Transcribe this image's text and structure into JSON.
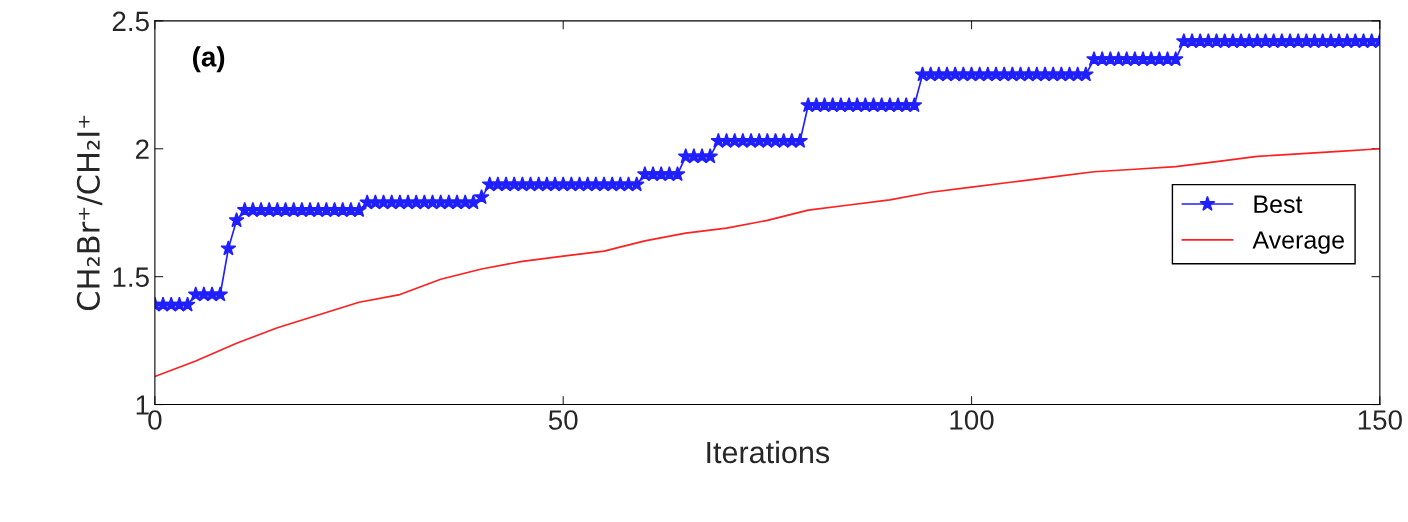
{
  "chart_data": {
    "type": "line",
    "xlabel": "Iterations",
    "ylabel": "CH₂Br⁺/CH₂I⁺",
    "annotations": [
      "(a)"
    ],
    "xlim": [
      0,
      150
    ],
    "xticks": [
      0,
      50,
      100,
      150
    ],
    "ylim": [
      1,
      2.5
    ],
    "yticks": [
      1,
      1.5,
      2,
      2.5
    ],
    "grid": false,
    "legend": "right",
    "series": [
      {
        "name": "Best",
        "color": "#1f1fff",
        "marker": "star",
        "line_style": "solid",
        "x": [
          0,
          1,
          2,
          3,
          4,
          5,
          6,
          7,
          8,
          9,
          10,
          11,
          12,
          13,
          14,
          15,
          16,
          17,
          18,
          19,
          20,
          21,
          22,
          23,
          24,
          25,
          26,
          27,
          28,
          29,
          30,
          31,
          32,
          33,
          34,
          35,
          36,
          37,
          38,
          39,
          40,
          41,
          42,
          43,
          44,
          45,
          46,
          47,
          48,
          49,
          50,
          51,
          52,
          53,
          54,
          55,
          56,
          57,
          58,
          59,
          60,
          61,
          62,
          63,
          64,
          65,
          66,
          67,
          68,
          69,
          70,
          71,
          72,
          73,
          74,
          75,
          76,
          77,
          78,
          79,
          80,
          81,
          82,
          83,
          84,
          85,
          86,
          87,
          88,
          89,
          90,
          91,
          92,
          93,
          94,
          95,
          96,
          97,
          98,
          99,
          100,
          101,
          102,
          103,
          104,
          105,
          106,
          107,
          108,
          109,
          110,
          111,
          112,
          113,
          114,
          115,
          116,
          117,
          118,
          119,
          120,
          121,
          122,
          123,
          124,
          125,
          126,
          127,
          128,
          129,
          130,
          131,
          132,
          133,
          134,
          135,
          136,
          137,
          138,
          139,
          140,
          141,
          142,
          143,
          144,
          145,
          146,
          147,
          148,
          149,
          150
        ],
        "values": [
          1.39,
          1.39,
          1.39,
          1.39,
          1.39,
          1.43,
          1.43,
          1.43,
          1.43,
          1.61,
          1.72,
          1.76,
          1.76,
          1.76,
          1.76,
          1.76,
          1.76,
          1.76,
          1.76,
          1.76,
          1.76,
          1.76,
          1.76,
          1.76,
          1.76,
          1.76,
          1.79,
          1.79,
          1.79,
          1.79,
          1.79,
          1.79,
          1.79,
          1.79,
          1.79,
          1.79,
          1.79,
          1.79,
          1.79,
          1.79,
          1.81,
          1.86,
          1.86,
          1.86,
          1.86,
          1.86,
          1.86,
          1.86,
          1.86,
          1.86,
          1.86,
          1.86,
          1.86,
          1.86,
          1.86,
          1.86,
          1.86,
          1.86,
          1.86,
          1.86,
          1.9,
          1.9,
          1.9,
          1.9,
          1.9,
          1.97,
          1.97,
          1.97,
          1.97,
          2.03,
          2.03,
          2.03,
          2.03,
          2.03,
          2.03,
          2.03,
          2.03,
          2.03,
          2.03,
          2.03,
          2.17,
          2.17,
          2.17,
          2.17,
          2.17,
          2.17,
          2.17,
          2.17,
          2.17,
          2.17,
          2.17,
          2.17,
          2.17,
          2.17,
          2.29,
          2.29,
          2.29,
          2.29,
          2.29,
          2.29,
          2.29,
          2.29,
          2.29,
          2.29,
          2.29,
          2.29,
          2.29,
          2.29,
          2.29,
          2.29,
          2.29,
          2.29,
          2.29,
          2.29,
          2.29,
          2.35,
          2.35,
          2.35,
          2.35,
          2.35,
          2.35,
          2.35,
          2.35,
          2.35,
          2.35,
          2.35,
          2.42,
          2.42,
          2.42,
          2.42,
          2.42,
          2.42,
          2.42,
          2.42,
          2.42,
          2.42,
          2.42,
          2.42,
          2.42,
          2.42,
          2.42,
          2.42,
          2.42,
          2.42,
          2.42,
          2.42,
          2.42,
          2.42,
          2.42,
          2.42,
          2.42
        ]
      },
      {
        "name": "Average",
        "color": "#ff2020",
        "marker": "none",
        "line_style": "solid",
        "x": [
          0,
          5,
          10,
          15,
          20,
          25,
          30,
          35,
          40,
          45,
          50,
          55,
          60,
          65,
          70,
          75,
          80,
          85,
          90,
          95,
          100,
          105,
          110,
          115,
          120,
          125,
          130,
          135,
          140,
          145,
          150
        ],
        "values": [
          1.11,
          1.17,
          1.24,
          1.3,
          1.35,
          1.4,
          1.43,
          1.49,
          1.53,
          1.56,
          1.58,
          1.6,
          1.64,
          1.67,
          1.69,
          1.72,
          1.76,
          1.78,
          1.8,
          1.83,
          1.85,
          1.87,
          1.89,
          1.91,
          1.92,
          1.93,
          1.95,
          1.97,
          1.98,
          1.99,
          2.0
        ]
      }
    ]
  }
}
